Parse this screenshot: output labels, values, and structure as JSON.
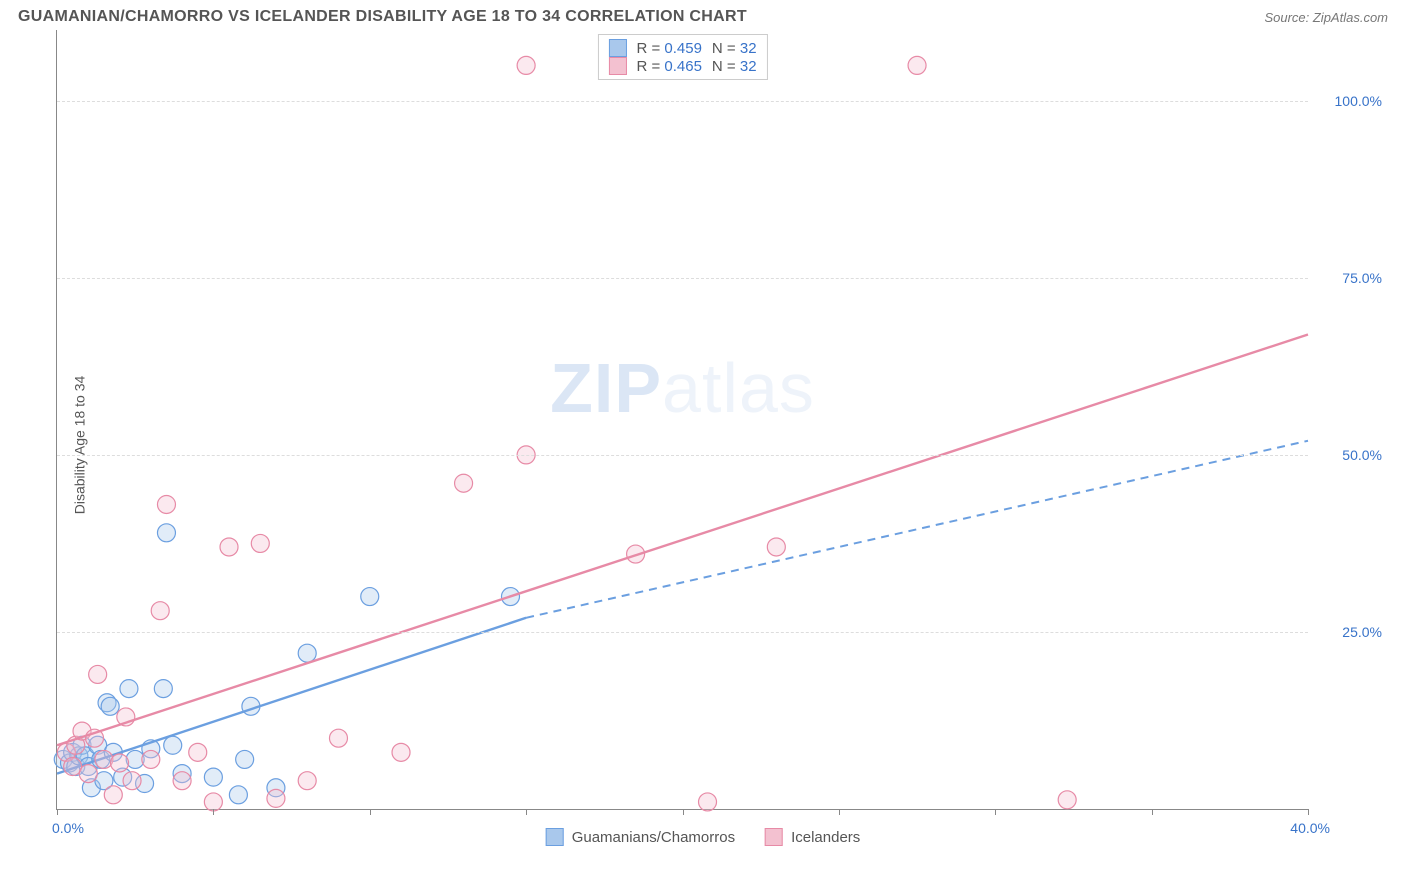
{
  "chart": {
    "type": "scatter",
    "title": "GUAMANIAN/CHAMORRO VS ICELANDER DISABILITY AGE 18 TO 34 CORRELATION CHART",
    "source_label": "Source: ZipAtlas.com",
    "y_axis_label": "Disability Age 18 to 34",
    "watermark": {
      "bold": "ZIP",
      "rest": "atlas"
    },
    "xlim": [
      0,
      40
    ],
    "ylim": [
      0,
      110
    ],
    "x_min_label": "0.0%",
    "x_max_label": "40.0%",
    "x_ticks": [
      0,
      5,
      10,
      15,
      20,
      25,
      30,
      35,
      40
    ],
    "y_ticks": [
      {
        "v": 25,
        "label": "25.0%"
      },
      {
        "v": 50,
        "label": "50.0%"
      },
      {
        "v": 75,
        "label": "75.0%"
      },
      {
        "v": 100,
        "label": "100.0%"
      }
    ],
    "grid_color": "#dddddd",
    "background_color": "#ffffff",
    "marker_radius": 9,
    "series": [
      {
        "key": "guamanian",
        "legend_label": "Guamanians/Chamorros",
        "color_stroke": "#6b9fe0",
        "color_fill": "#a9c8ec",
        "R": "0.459",
        "N": "32",
        "trend": {
          "solid_x": [
            0,
            15
          ],
          "solid_y": [
            5,
            27
          ],
          "dash_x": [
            15,
            40
          ],
          "dash_y": [
            27,
            52
          ]
        },
        "points": [
          [
            0.2,
            7
          ],
          [
            0.4,
            6.5
          ],
          [
            0.5,
            8
          ],
          [
            0.6,
            6
          ],
          [
            0.7,
            7.5
          ],
          [
            0.8,
            9
          ],
          [
            0.9,
            7.5
          ],
          [
            1.0,
            6
          ],
          [
            1.1,
            3
          ],
          [
            1.3,
            9
          ],
          [
            1.4,
            7
          ],
          [
            1.5,
            4
          ],
          [
            1.6,
            15
          ],
          [
            1.7,
            14.5
          ],
          [
            1.8,
            8
          ],
          [
            2.1,
            4.5
          ],
          [
            2.3,
            17
          ],
          [
            2.5,
            7
          ],
          [
            2.8,
            3.6
          ],
          [
            3.0,
            8.5
          ],
          [
            3.4,
            17
          ],
          [
            3.5,
            39
          ],
          [
            3.7,
            9
          ],
          [
            4.0,
            5
          ],
          [
            5.0,
            4.5
          ],
          [
            5.8,
            2
          ],
          [
            6.0,
            7
          ],
          [
            6.2,
            14.5
          ],
          [
            7.0,
            3
          ],
          [
            8.0,
            22
          ],
          [
            10.0,
            30
          ],
          [
            14.5,
            30
          ]
        ]
      },
      {
        "key": "icelander",
        "legend_label": "Icelanders",
        "color_stroke": "#e78aa6",
        "color_fill": "#f3c1d0",
        "R": "0.465",
        "N": "32",
        "trend": {
          "solid_x": [
            0,
            40
          ],
          "solid_y": [
            9,
            67
          ]
        },
        "points": [
          [
            0.3,
            8
          ],
          [
            0.5,
            6
          ],
          [
            0.6,
            9
          ],
          [
            0.8,
            11
          ],
          [
            1.0,
            5
          ],
          [
            1.2,
            10
          ],
          [
            1.3,
            19
          ],
          [
            1.5,
            7
          ],
          [
            1.8,
            2
          ],
          [
            2.0,
            6.5
          ],
          [
            2.2,
            13
          ],
          [
            2.4,
            4
          ],
          [
            3.0,
            7
          ],
          [
            3.3,
            28
          ],
          [
            3.5,
            43
          ],
          [
            4.0,
            4
          ],
          [
            4.5,
            8
          ],
          [
            5.0,
            1
          ],
          [
            5.5,
            37
          ],
          [
            6.5,
            37.5
          ],
          [
            7.0,
            1.5
          ],
          [
            8.0,
            4
          ],
          [
            9.0,
            10
          ],
          [
            11.0,
            8
          ],
          [
            13.0,
            46
          ],
          [
            15.0,
            50
          ],
          [
            15.0,
            105
          ],
          [
            18.5,
            36
          ],
          [
            20.8,
            1
          ],
          [
            23.0,
            37
          ],
          [
            27.5,
            105
          ],
          [
            32.3,
            1.3
          ]
        ]
      }
    ],
    "stats_box": {
      "R_prefix": "R = ",
      "N_prefix": "N = "
    }
  }
}
